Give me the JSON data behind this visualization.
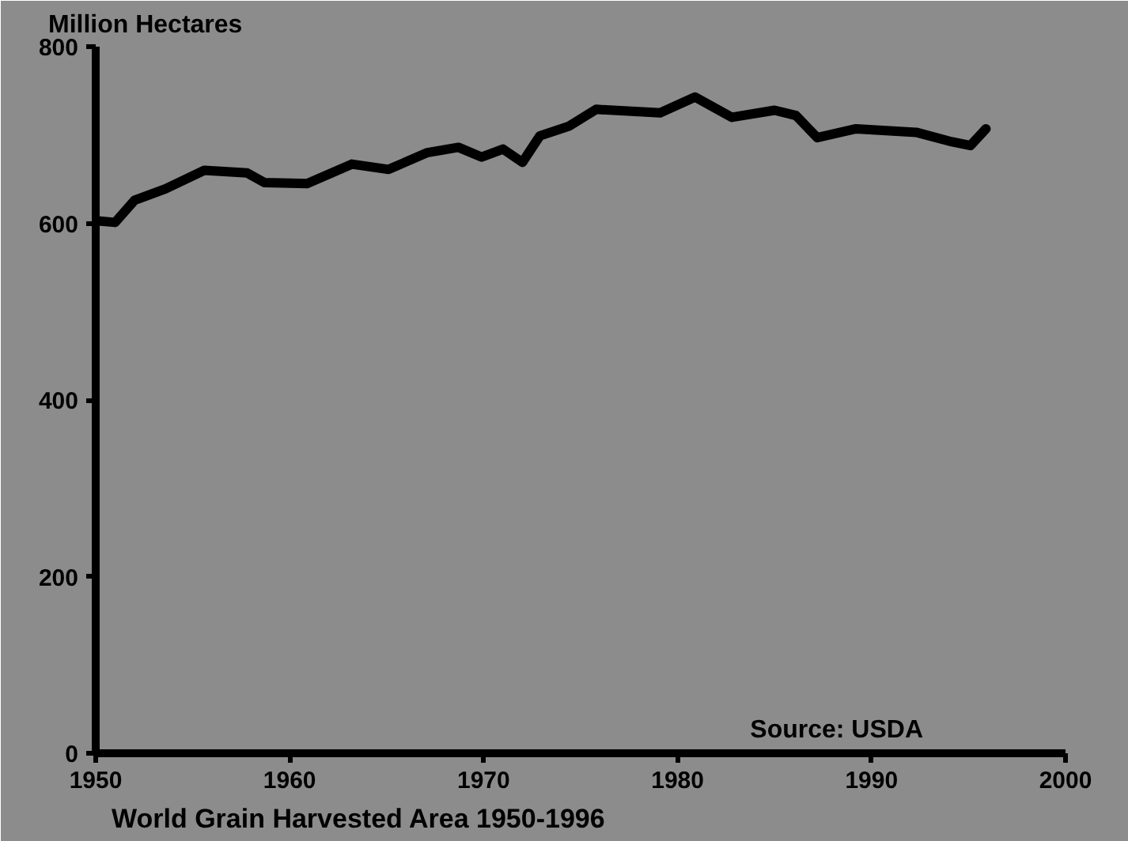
{
  "chart_data": {
    "type": "line",
    "title": "World Grain Harvested Area 1950-1996",
    "ylabel": "Million Hectares",
    "annotations": [
      "Source: USDA"
    ],
    "x": [
      1950,
      1951,
      1952,
      1953.6,
      1955.6,
      1957.8,
      1958.7,
      1960.9,
      1963.2,
      1965.1,
      1967.1,
      1968.7,
      1969.9,
      1971,
      1972,
      1972.9,
      1974.4,
      1975.8,
      1979.1,
      1980.9,
      1982.8,
      1985,
      1986.1,
      1987.2,
      1989.2,
      1992.3,
      1994,
      1995.1,
      1995.9
    ],
    "series": [
      {
        "color": "#000000",
        "values": [
          603,
          601,
          626,
          639,
          660,
          657,
          646,
          645,
          667,
          661,
          680,
          686,
          675,
          684,
          669,
          699,
          710,
          729,
          725,
          743,
          720,
          728,
          722,
          697,
          707,
          703,
          693,
          688,
          707
        ]
      }
    ],
    "xlim": [
      1950,
      2000
    ],
    "ylim": [
      0,
      800
    ],
    "xticks": [
      1950,
      1960,
      1970,
      1980,
      1990,
      2000
    ],
    "yticks": [
      0,
      200,
      400,
      600,
      800
    ],
    "grid": false,
    "line_style": "solid"
  }
}
